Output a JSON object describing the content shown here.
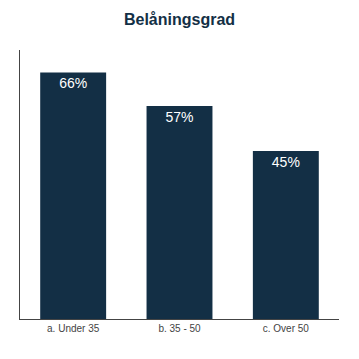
{
  "chart_data": {
    "type": "bar",
    "title": "Belåningsgrad",
    "categories": [
      "a. Under 35",
      "b. 35 - 50",
      "c. Over 50"
    ],
    "values": [
      66,
      57,
      45
    ],
    "value_labels": [
      "66%",
      "57%",
      "45%"
    ],
    "color": "#132f45",
    "ylim": [
      0,
      72
    ],
    "grid": false,
    "data_labels": true,
    "tick_labels": "x"
  }
}
